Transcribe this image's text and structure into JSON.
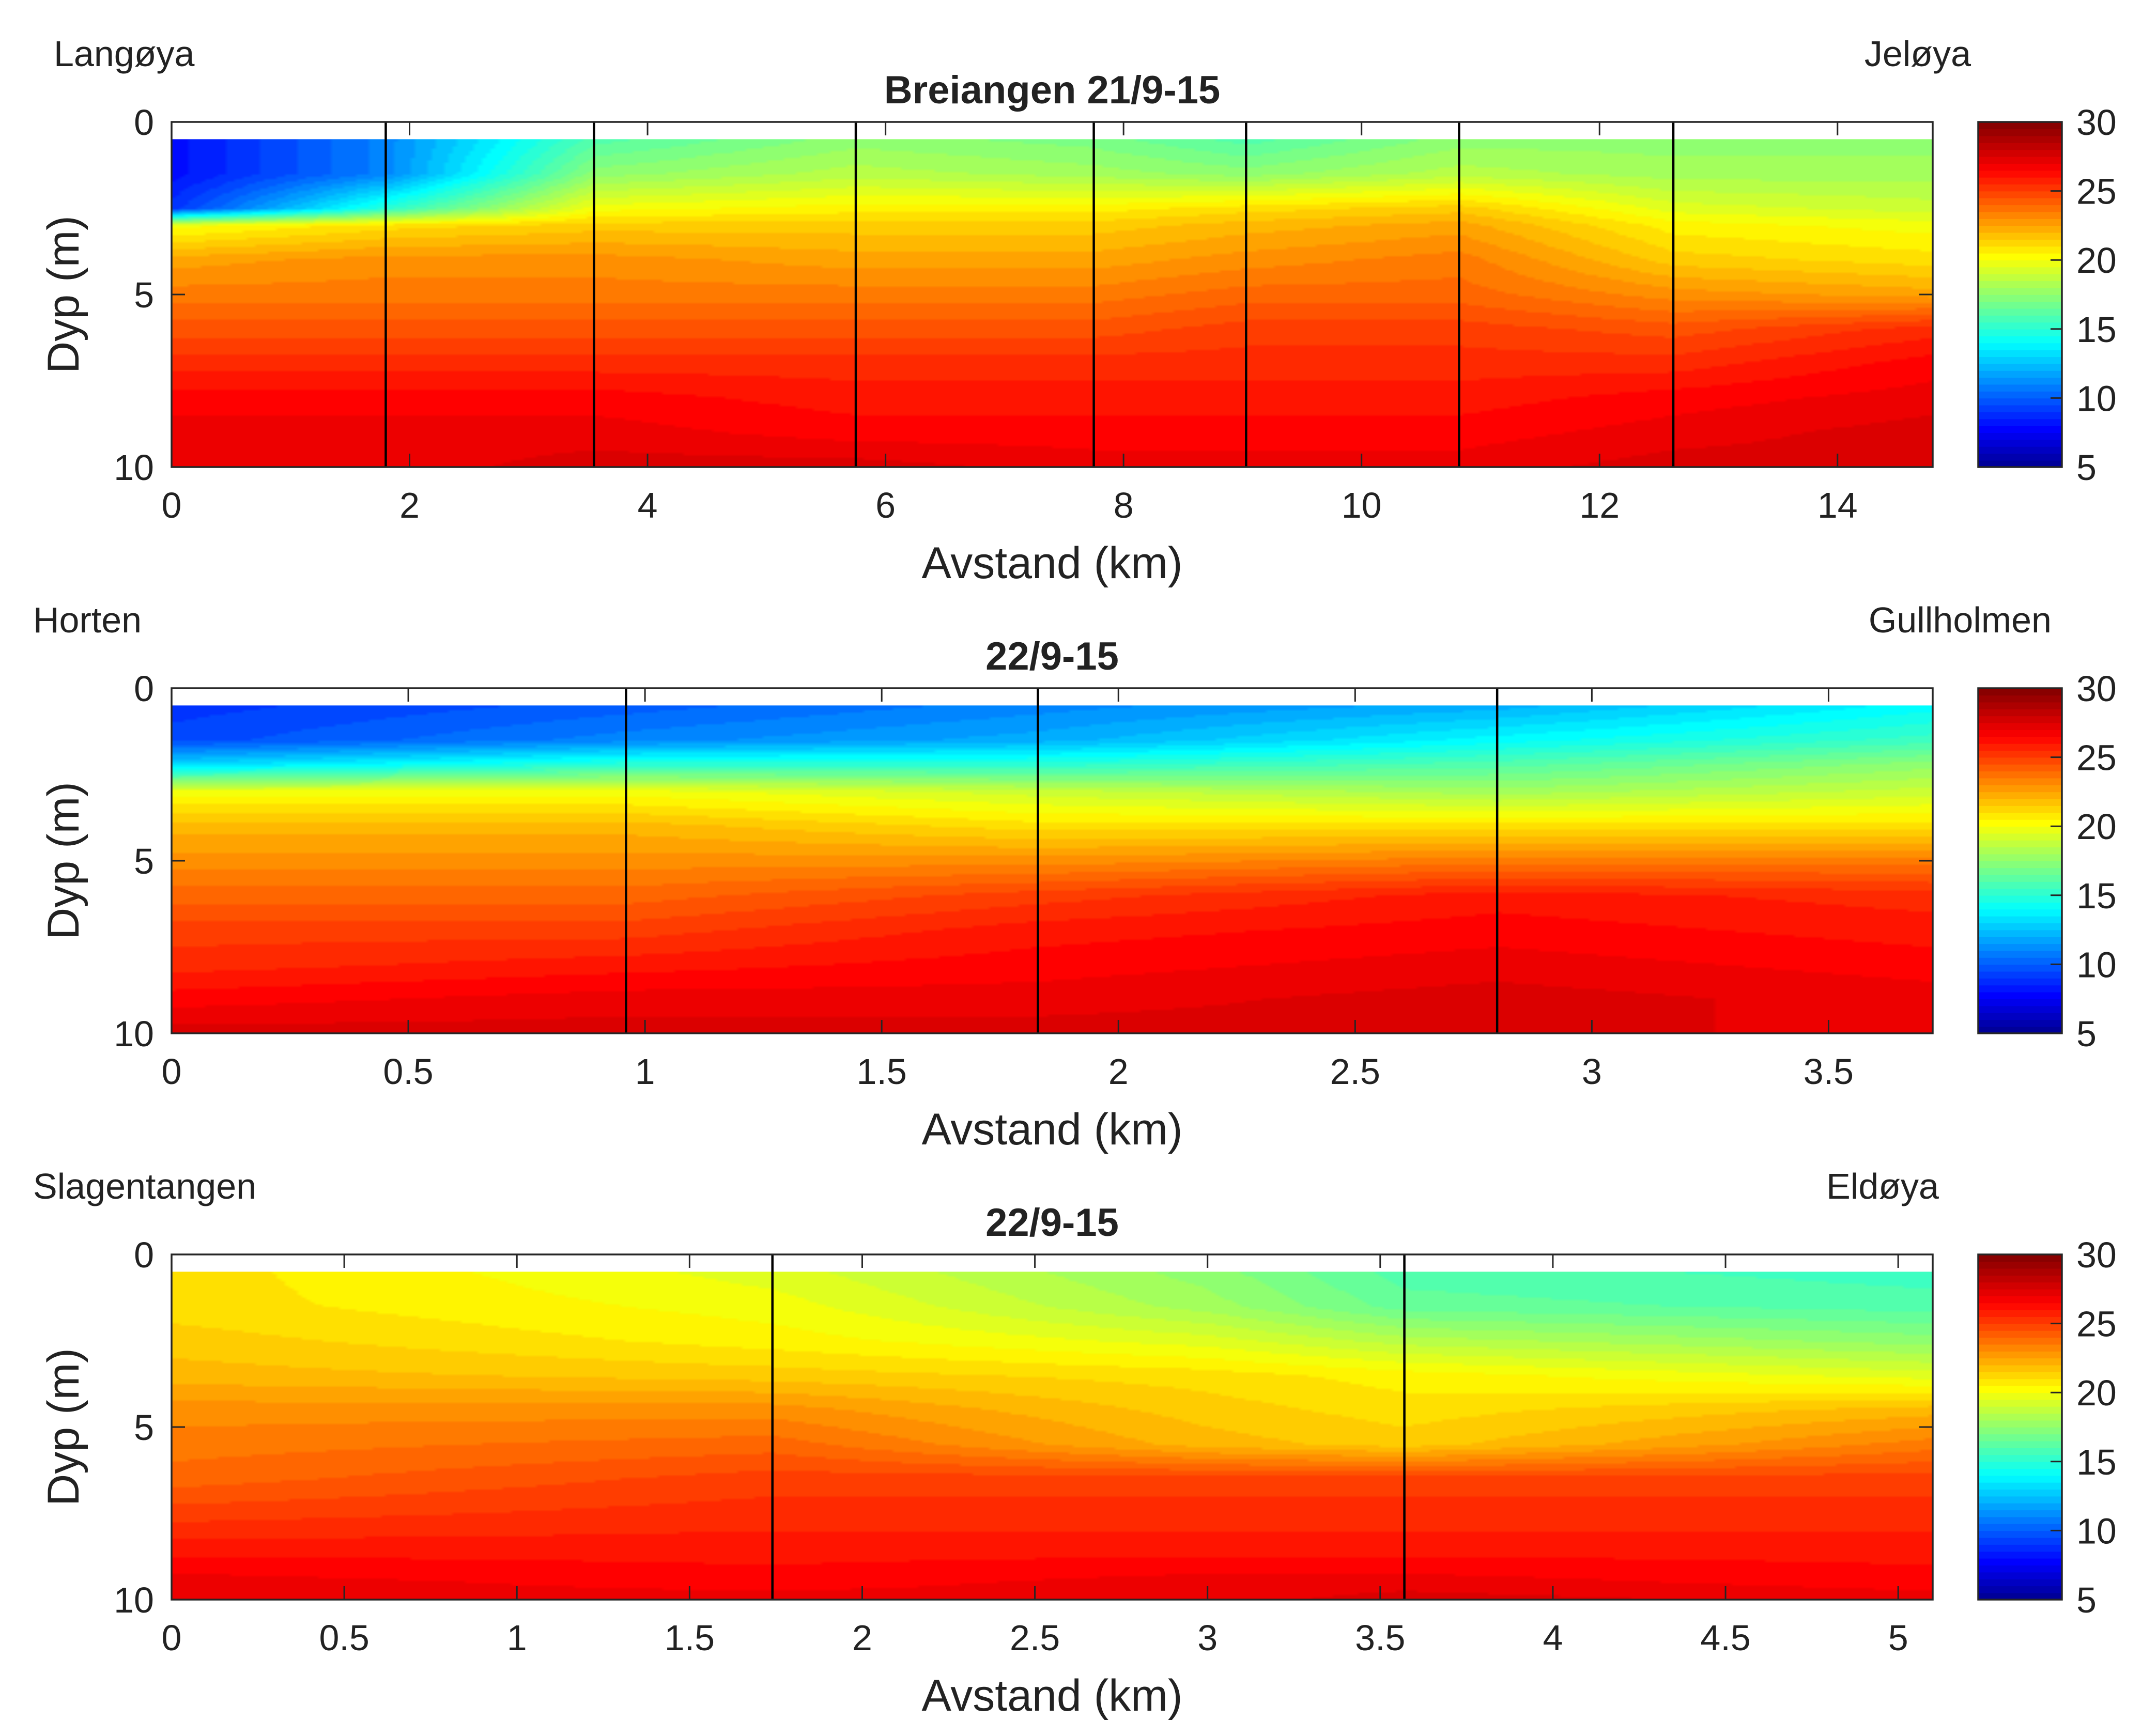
{
  "colormap": {
    "name": "jet",
    "stops": [
      "#00008f",
      "#0000ff",
      "#00ffff",
      "#ffff00",
      "#ff0000",
      "#800000"
    ]
  },
  "chart_data": [
    {
      "type": "heatmap",
      "title": "Breiangen 21/9-15",
      "left_label": "Langøya",
      "right_label": "Jeløya",
      "xlabel": "Avstand (km)",
      "ylabel": "Dyp (m)",
      "xlim": [
        0,
        14.8
      ],
      "ylim": [
        0,
        10
      ],
      "y_reversed": true,
      "x_ticks": [
        0,
        2,
        4,
        6,
        8,
        10,
        12,
        14
      ],
      "y_ticks": [
        0,
        5,
        10
      ],
      "colorbar": {
        "range": [
          5,
          30
        ],
        "ticks": [
          5,
          10,
          15,
          20,
          25,
          30
        ]
      },
      "data_top_depth": 0.5,
      "stations": [
        1.8,
        3.55,
        5.75,
        7.75,
        9.03,
        10.82,
        12.62
      ],
      "profiles": [
        {
          "x": 0,
          "depth": [
            0.5,
            1.5,
            2.5,
            3,
            4,
            5,
            6,
            7,
            8,
            9,
            10
          ],
          "value": [
            8,
            8,
            9,
            20,
            22.5,
            23.5,
            24.5,
            25.5,
            26.5,
            27,
            27
          ]
        },
        {
          "x": 1.8,
          "depth": [
            0.5,
            1.5,
            2.5,
            3,
            4,
            5,
            6,
            7,
            8,
            9,
            10
          ],
          "value": [
            11,
            11,
            15,
            21,
            23,
            23.5,
            24.5,
            25.5,
            26.5,
            27,
            27
          ]
        },
        {
          "x": 3.55,
          "depth": [
            0.5,
            1.5,
            2.5,
            3,
            4,
            5,
            6,
            7,
            8,
            9,
            10
          ],
          "value": [
            16,
            17.5,
            20,
            21.5,
            23,
            23.5,
            24.5,
            25.5,
            26.5,
            27,
            27.5
          ]
        },
        {
          "x": 5.75,
          "depth": [
            0.5,
            1.5,
            2.5,
            3,
            4,
            5,
            6,
            7,
            8,
            9,
            10
          ],
          "value": [
            17.5,
            18.5,
            20.5,
            21.5,
            22.5,
            23.5,
            24.5,
            25.5,
            26,
            26.5,
            27.5
          ]
        },
        {
          "x": 7.75,
          "depth": [
            0.5,
            1.5,
            2.5,
            3,
            4,
            5,
            6,
            7,
            8,
            9,
            10
          ],
          "value": [
            17,
            18,
            20.5,
            21.5,
            22.5,
            23.5,
            24.5,
            25.5,
            26,
            26.5,
            27
          ]
        },
        {
          "x": 9.03,
          "depth": [
            0.5,
            1.5,
            2.5,
            3,
            4,
            5,
            6,
            7,
            8,
            9,
            10
          ],
          "value": [
            16,
            17.5,
            21,
            22,
            23,
            24,
            25,
            25.5,
            26,
            26.5,
            27
          ]
        },
        {
          "x": 10.82,
          "depth": [
            0.5,
            1.5,
            2.5,
            3,
            4,
            5,
            6,
            7,
            8,
            9,
            10
          ],
          "value": [
            17.5,
            18.5,
            21.5,
            22.5,
            23.5,
            24,
            25,
            25.5,
            26,
            26.5,
            27
          ]
        },
        {
          "x": 12.62,
          "depth": [
            0.5,
            1.5,
            2.5,
            3,
            4,
            5,
            6,
            7,
            8,
            9,
            10
          ],
          "value": [
            17.5,
            18,
            19.5,
            20.5,
            21.5,
            23,
            24.5,
            25.5,
            26.5,
            27,
            27.5
          ]
        },
        {
          "x": 14.8,
          "depth": [
            0.5,
            1.5,
            2.5,
            3,
            4,
            5,
            6,
            7,
            8,
            9,
            10
          ],
          "value": [
            17.5,
            18,
            19,
            20,
            21,
            22.5,
            25.5,
            26.5,
            27,
            27.5,
            27.5
          ]
        }
      ]
    },
    {
      "type": "heatmap",
      "title": "22/9-15",
      "left_label": "Horten",
      "right_label": "Gullholmen",
      "xlabel": "Avstand (km)",
      "ylabel": "Dyp (m)",
      "xlim": [
        0,
        3.72
      ],
      "ylim": [
        0,
        10
      ],
      "y_reversed": true,
      "x_ticks": [
        0,
        0.5,
        1,
        1.5,
        2,
        2.5,
        3,
        3.5
      ],
      "y_ticks": [
        0,
        5,
        10
      ],
      "colorbar": {
        "range": [
          5,
          30
        ],
        "ticks": [
          5,
          10,
          15,
          20,
          25,
          30
        ]
      },
      "data_top_depth": 0.5,
      "stations": [
        0.96,
        1.83,
        2.8
      ],
      "profiles": [
        {
          "x": 0,
          "depth": [
            0.5,
            1.5,
            2.2,
            3,
            4,
            5,
            6,
            7,
            8,
            9,
            10
          ],
          "value": [
            9,
            9.5,
            13,
            20,
            22,
            23,
            24,
            25,
            25.5,
            26.5,
            27.5
          ]
        },
        {
          "x": 0.96,
          "depth": [
            0.5,
            1.5,
            2.2,
            3,
            4,
            5,
            6,
            7,
            8,
            9,
            10
          ],
          "value": [
            10,
            11,
            15,
            20,
            22,
            23,
            24,
            25,
            26,
            27,
            27.5
          ]
        },
        {
          "x": 1.83,
          "depth": [
            0.5,
            1.5,
            2.2,
            3,
            4,
            5,
            6,
            7,
            8,
            9,
            10
          ],
          "value": [
            11,
            12,
            15,
            19,
            21,
            23,
            25,
            26,
            26.5,
            27,
            27.5
          ]
        },
        {
          "x": 2.8,
          "depth": [
            0.5,
            1.5,
            2.2,
            3,
            4,
            5,
            6,
            7,
            8,
            9,
            10
          ],
          "value": [
            12,
            14,
            16,
            18,
            21,
            23.5,
            26,
            26.5,
            27,
            27.5,
            27.5
          ]
        },
        {
          "x": 3.72,
          "depth": [
            0.5,
            1.5,
            2.2,
            3,
            4,
            5,
            6,
            7,
            8,
            9,
            10
          ],
          "value": [
            14,
            15.5,
            17.5,
            19,
            21,
            23.5,
            25.5,
            26,
            26.5,
            27,
            27
          ]
        }
      ]
    },
    {
      "type": "heatmap",
      "title": "22/9-15",
      "left_label": "Slagentangen",
      "right_label": "Eldøya",
      "xlabel": "Avstand (km)",
      "ylabel": "Dyp (m)",
      "xlim": [
        0,
        5.1
      ],
      "ylim": [
        0,
        10
      ],
      "y_reversed": true,
      "x_ticks": [
        0,
        0.5,
        1,
        1.5,
        2,
        2.5,
        3,
        3.5,
        4,
        4.5,
        5
      ],
      "y_ticks": [
        0,
        5,
        10
      ],
      "colorbar": {
        "range": [
          5,
          30
        ],
        "ticks": [
          5,
          10,
          15,
          20,
          25,
          30
        ]
      },
      "data_top_depth": 0.5,
      "stations": [
        1.74,
        3.57
      ],
      "profiles": [
        {
          "x": 0,
          "depth": [
            0.5,
            1.5,
            2.5,
            3.5,
            4.5,
            5.5,
            6.5,
            7.5,
            8.5,
            9.5,
            10
          ],
          "value": [
            21,
            21,
            21.5,
            22,
            23,
            23.5,
            24,
            25,
            26,
            27,
            27
          ]
        },
        {
          "x": 1.74,
          "depth": [
            0.5,
            1.5,
            2.5,
            3.5,
            4.5,
            5.5,
            6.5,
            7.5,
            8.5,
            9.5,
            10
          ],
          "value": [
            19.5,
            20,
            20.5,
            21.5,
            23,
            24,
            25,
            25.5,
            26,
            26.5,
            27
          ]
        },
        {
          "x": 3.0,
          "depth": [
            0.5,
            1.5,
            2.5,
            3.5,
            4.5,
            5.5,
            6.5,
            7.5,
            8.5,
            9.5,
            10
          ],
          "value": [
            17.5,
            18,
            19.5,
            21,
            21.5,
            22,
            25,
            25.5,
            26,
            27,
            27
          ]
        },
        {
          "x": 3.57,
          "depth": [
            0.5,
            1.5,
            2.5,
            3.5,
            4.5,
            5.5,
            6.5,
            7.5,
            8.5,
            9.5,
            10
          ],
          "value": [
            16,
            16.5,
            18.5,
            20.5,
            21,
            21.5,
            25,
            25.5,
            26,
            27,
            27.5
          ]
        },
        {
          "x": 5.1,
          "depth": [
            0.5,
            1.5,
            2.5,
            3.5,
            4.5,
            5.5,
            6.5,
            7.5,
            8.5,
            9.5,
            10
          ],
          "value": [
            15.5,
            16,
            17.5,
            19.5,
            22,
            23.5,
            25,
            25.5,
            26,
            26.5,
            27
          ]
        }
      ]
    }
  ]
}
